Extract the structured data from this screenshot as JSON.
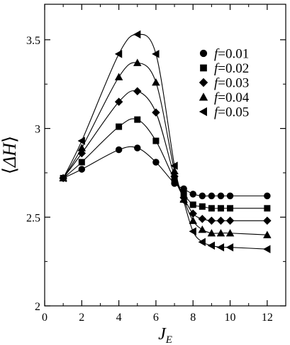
{
  "chart_data": {
    "type": "line",
    "title": "",
    "xlabel": "J_E",
    "ylabel": "⟨ΔH⟩",
    "xlim": [
      0,
      13
    ],
    "ylim": [
      2,
      3.7
    ],
    "xticks": [
      0,
      2,
      4,
      6,
      8,
      10,
      12
    ],
    "yticks": [
      2,
      2.5,
      3,
      3.5
    ],
    "xtick_labels": [
      "0",
      "2",
      "4",
      "6",
      "8",
      "10",
      "12"
    ],
    "ytick_labels": [
      "2",
      "2.5",
      "3",
      "3.5"
    ],
    "grid": false,
    "legend_position": "top-right",
    "x": [
      1,
      2,
      4,
      5,
      6,
      7,
      7.5,
      8,
      8.5,
      9,
      9.5,
      10,
      12
    ],
    "series": [
      {
        "name": "f=0.01",
        "marker": "circle",
        "values": [
          2.72,
          2.77,
          2.88,
          2.89,
          2.81,
          2.69,
          2.66,
          2.63,
          2.62,
          2.62,
          2.62,
          2.62,
          2.62
        ]
      },
      {
        "name": "f=0.02",
        "marker": "square",
        "values": [
          2.72,
          2.81,
          3.01,
          3.05,
          2.93,
          2.71,
          2.63,
          2.57,
          2.56,
          2.55,
          2.55,
          2.55,
          2.55
        ]
      },
      {
        "name": "f=0.03",
        "marker": "diamond",
        "values": [
          2.72,
          2.86,
          3.15,
          3.21,
          3.09,
          2.73,
          2.61,
          2.52,
          2.49,
          2.48,
          2.48,
          2.48,
          2.48
        ]
      },
      {
        "name": "f=0.04",
        "marker": "triangle-up",
        "values": [
          2.72,
          2.89,
          3.29,
          3.37,
          3.26,
          2.76,
          2.6,
          2.48,
          2.43,
          2.41,
          2.41,
          2.41,
          2.4
        ]
      },
      {
        "name": "f=0.05",
        "marker": "triangle-left",
        "values": [
          2.72,
          2.93,
          3.42,
          3.53,
          3.42,
          2.79,
          2.59,
          2.42,
          2.36,
          2.34,
          2.33,
          2.33,
          2.32
        ]
      }
    ]
  }
}
